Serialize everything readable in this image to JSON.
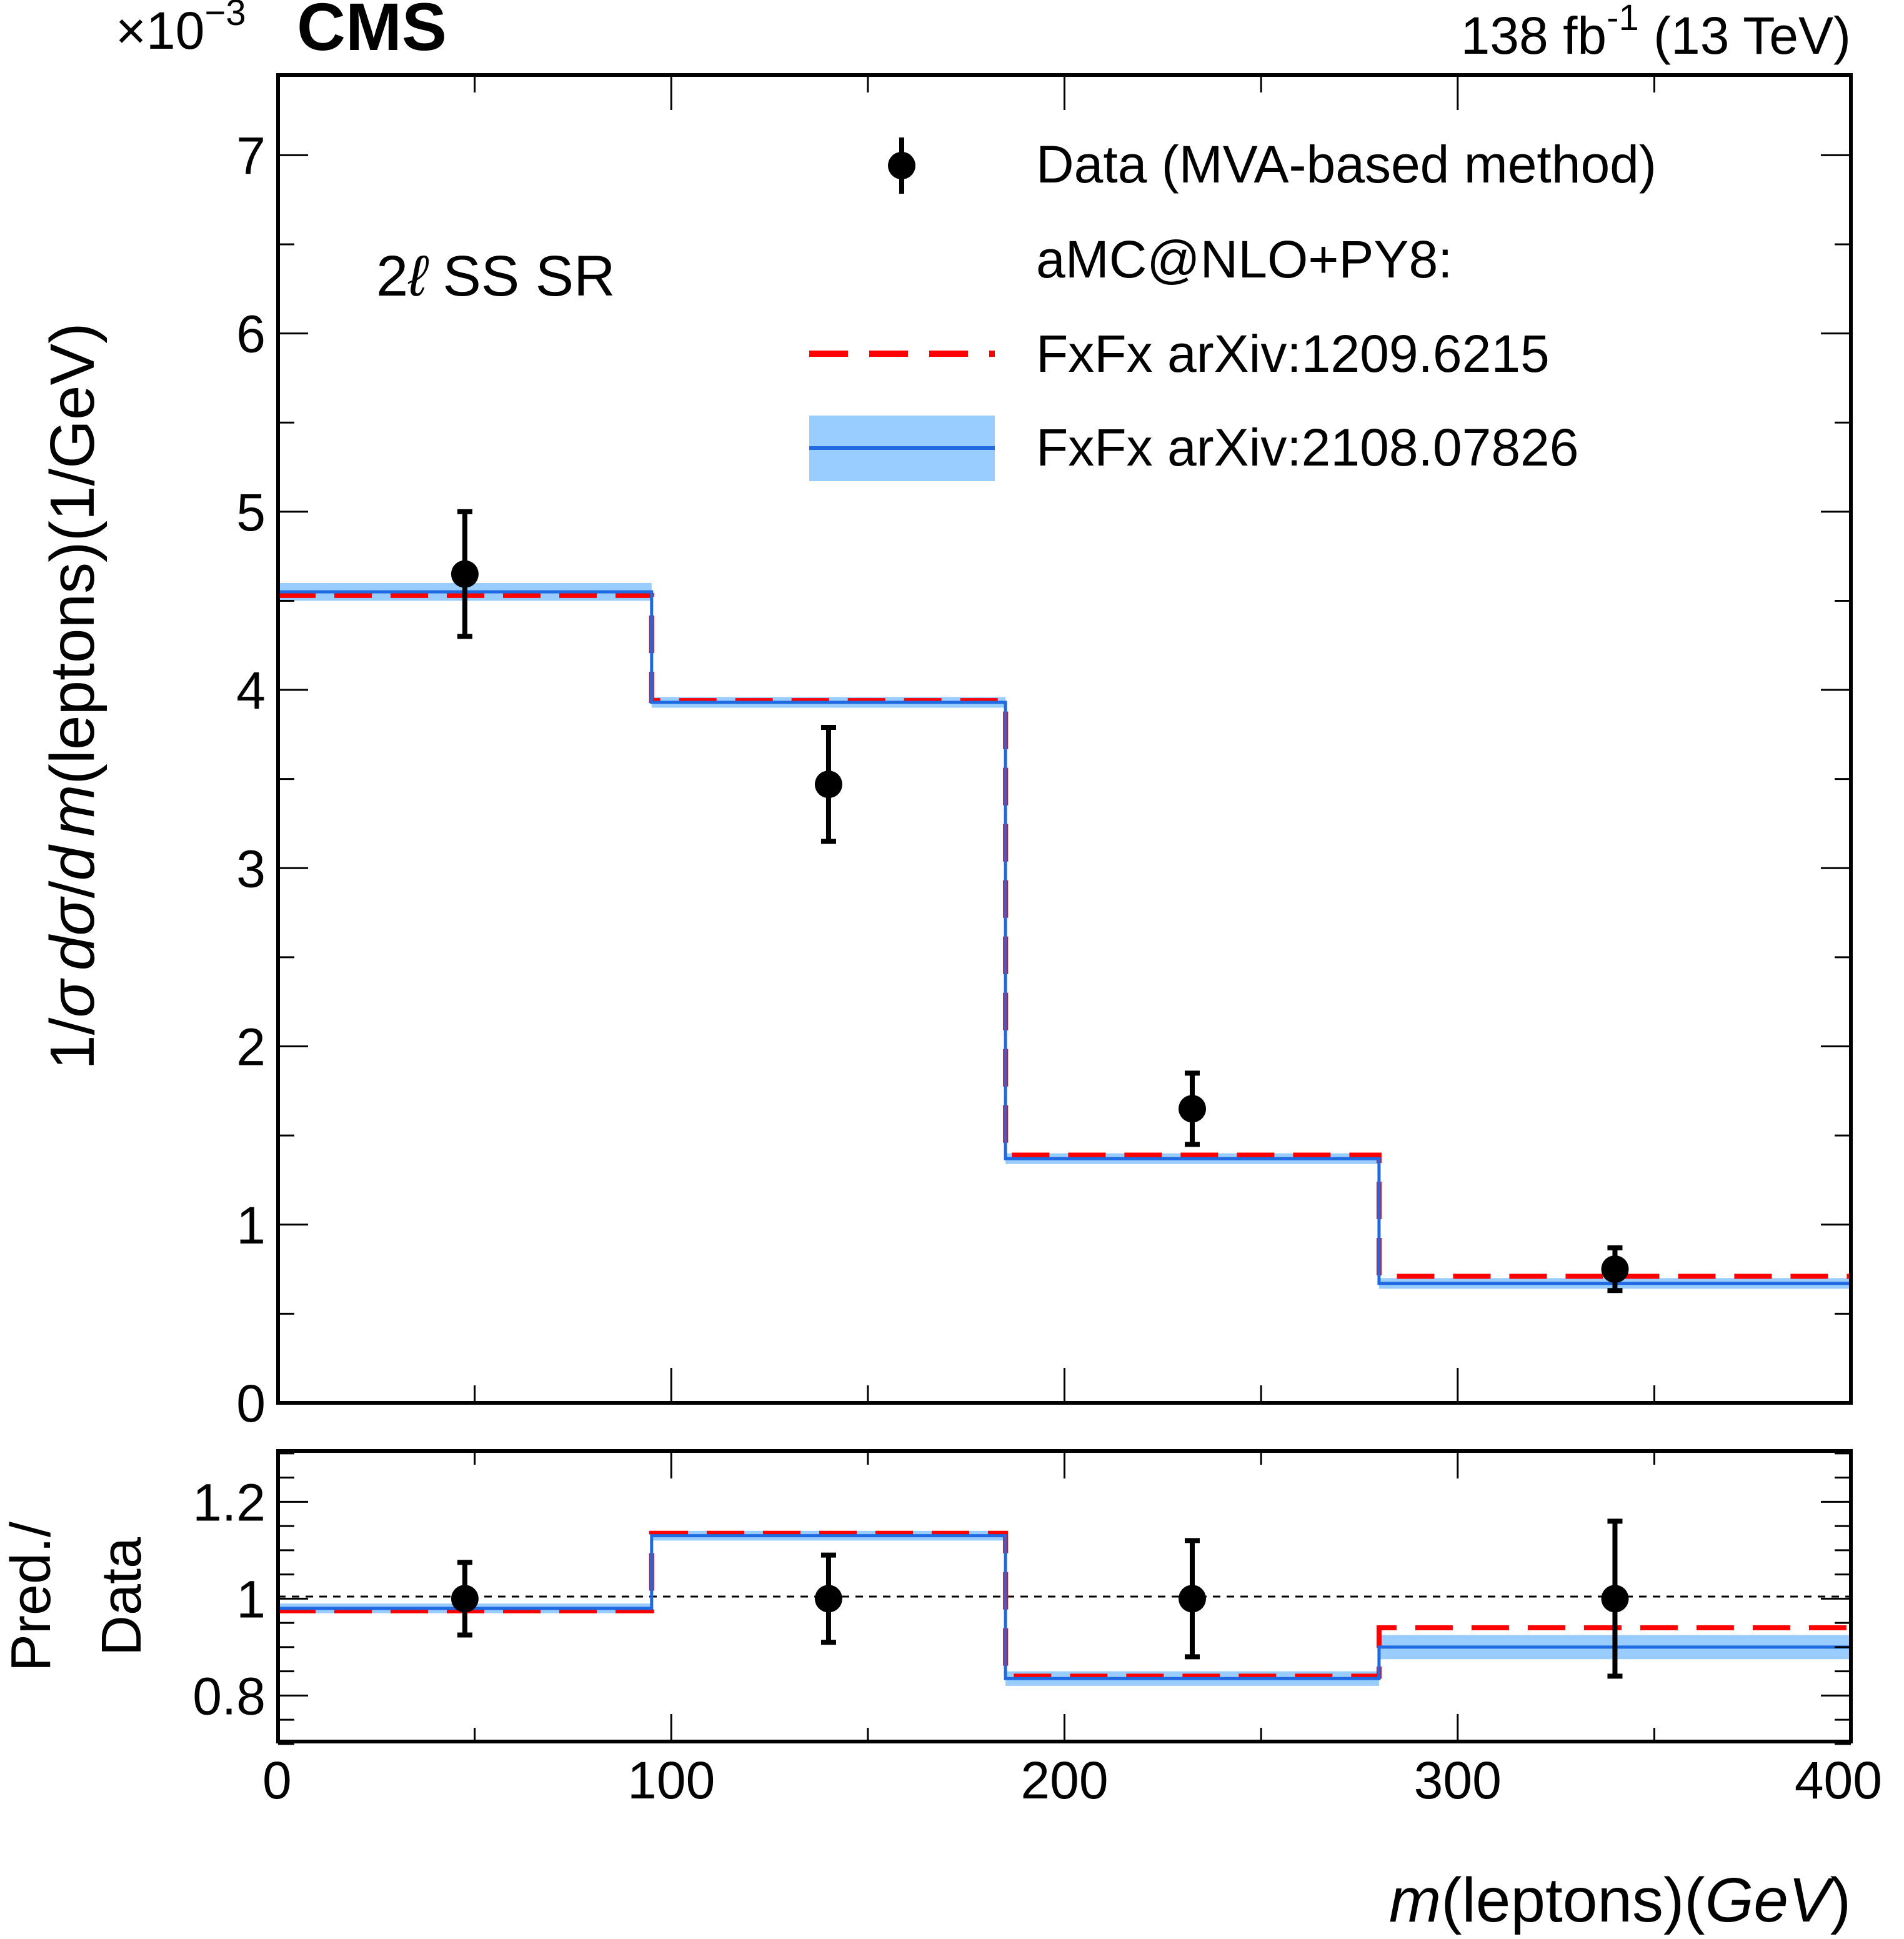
{
  "header": {
    "scale_prefix": "×10",
    "scale_exponent": "−3",
    "experiment": "CMS",
    "lumi_prefix": "138 fb",
    "lumi_exponent": "-1",
    "lumi_suffix": " (13 TeV)"
  },
  "region_label": {
    "prefix": "2",
    "script_l": "ℓ",
    "suffix": " SS SR"
  },
  "legend": {
    "data": "Data (MVA-based method)",
    "generator": "aMC@NLO+PY8:",
    "red": "FxFx arXiv:1209.6215",
    "blue": "FxFx arXiv:2108.07826"
  },
  "axes": {
    "y_label": {
      "p1": "1/",
      "p2": "σ",
      "p3": "d",
      "p4": "σ",
      "p5": "/",
      "p6": "d",
      "p7": "m",
      "p8": "(leptons)(1/GeV)"
    },
    "x_label": {
      "p1": "m",
      "p2": "(leptons)(",
      "p3": "GeV",
      "p4": ")"
    },
    "ratio_label_1": "Pred./",
    "ratio_label_2": "Data",
    "x_ticks": [
      "0",
      "100",
      "200",
      "300",
      "400"
    ],
    "y_ticks": [
      "0",
      "1",
      "2",
      "3",
      "4",
      "5",
      "6",
      "7"
    ],
    "ratio_ticks": [
      "0.8",
      "1",
      "1.2"
    ]
  },
  "colors": {
    "red": "#ff0000",
    "blue_line": "#1f6ae0",
    "blue_band": "#99ccff",
    "data": "#000000"
  },
  "chart_data": {
    "type": "histogram",
    "xlabel": "m(leptons)(GeV)",
    "ylabel": "1/σ dσ/d m(leptons)(1/GeV)",
    "y_scale": "1e-3",
    "bin_edges": [
      0,
      95,
      185,
      280,
      400
    ],
    "x_range": [
      0,
      400
    ],
    "y_range": [
      0,
      7.45
    ],
    "ratio_range": [
      0.705,
      1.305
    ],
    "data": {
      "name": "Data (MVA-based method)",
      "x": [
        47.5,
        140,
        232.5,
        340
      ],
      "y": [
        4.65,
        3.47,
        1.65,
        0.75
      ],
      "yerr_lo": [
        0.35,
        0.32,
        0.2,
        0.12
      ],
      "yerr_hi": [
        0.35,
        0.32,
        0.2,
        0.12
      ],
      "ratio": [
        1.0,
        1.0,
        1.0,
        1.0
      ],
      "ratio_err_lo": [
        0.075,
        0.09,
        0.12,
        0.16
      ],
      "ratio_err_hi": [
        0.075,
        0.09,
        0.12,
        0.16
      ]
    },
    "series": [
      {
        "name": "FxFx arXiv:1209.6215",
        "values": [
          4.53,
          3.94,
          1.39,
          0.71
        ],
        "ratio": [
          0.975,
          1.135,
          0.84,
          0.94
        ]
      },
      {
        "name": "FxFx arXiv:2108.07826",
        "values": [
          4.55,
          3.93,
          1.37,
          0.67
        ],
        "band_lo": [
          4.5,
          3.9,
          1.34,
          0.64
        ],
        "band_hi": [
          4.6,
          3.96,
          1.4,
          0.7
        ],
        "ratio": [
          0.98,
          1.13,
          0.835,
          0.9
        ],
        "ratio_band_lo": [
          0.97,
          1.12,
          0.82,
          0.875
        ],
        "ratio_band_hi": [
          0.99,
          1.14,
          0.85,
          0.925
        ]
      }
    ]
  }
}
